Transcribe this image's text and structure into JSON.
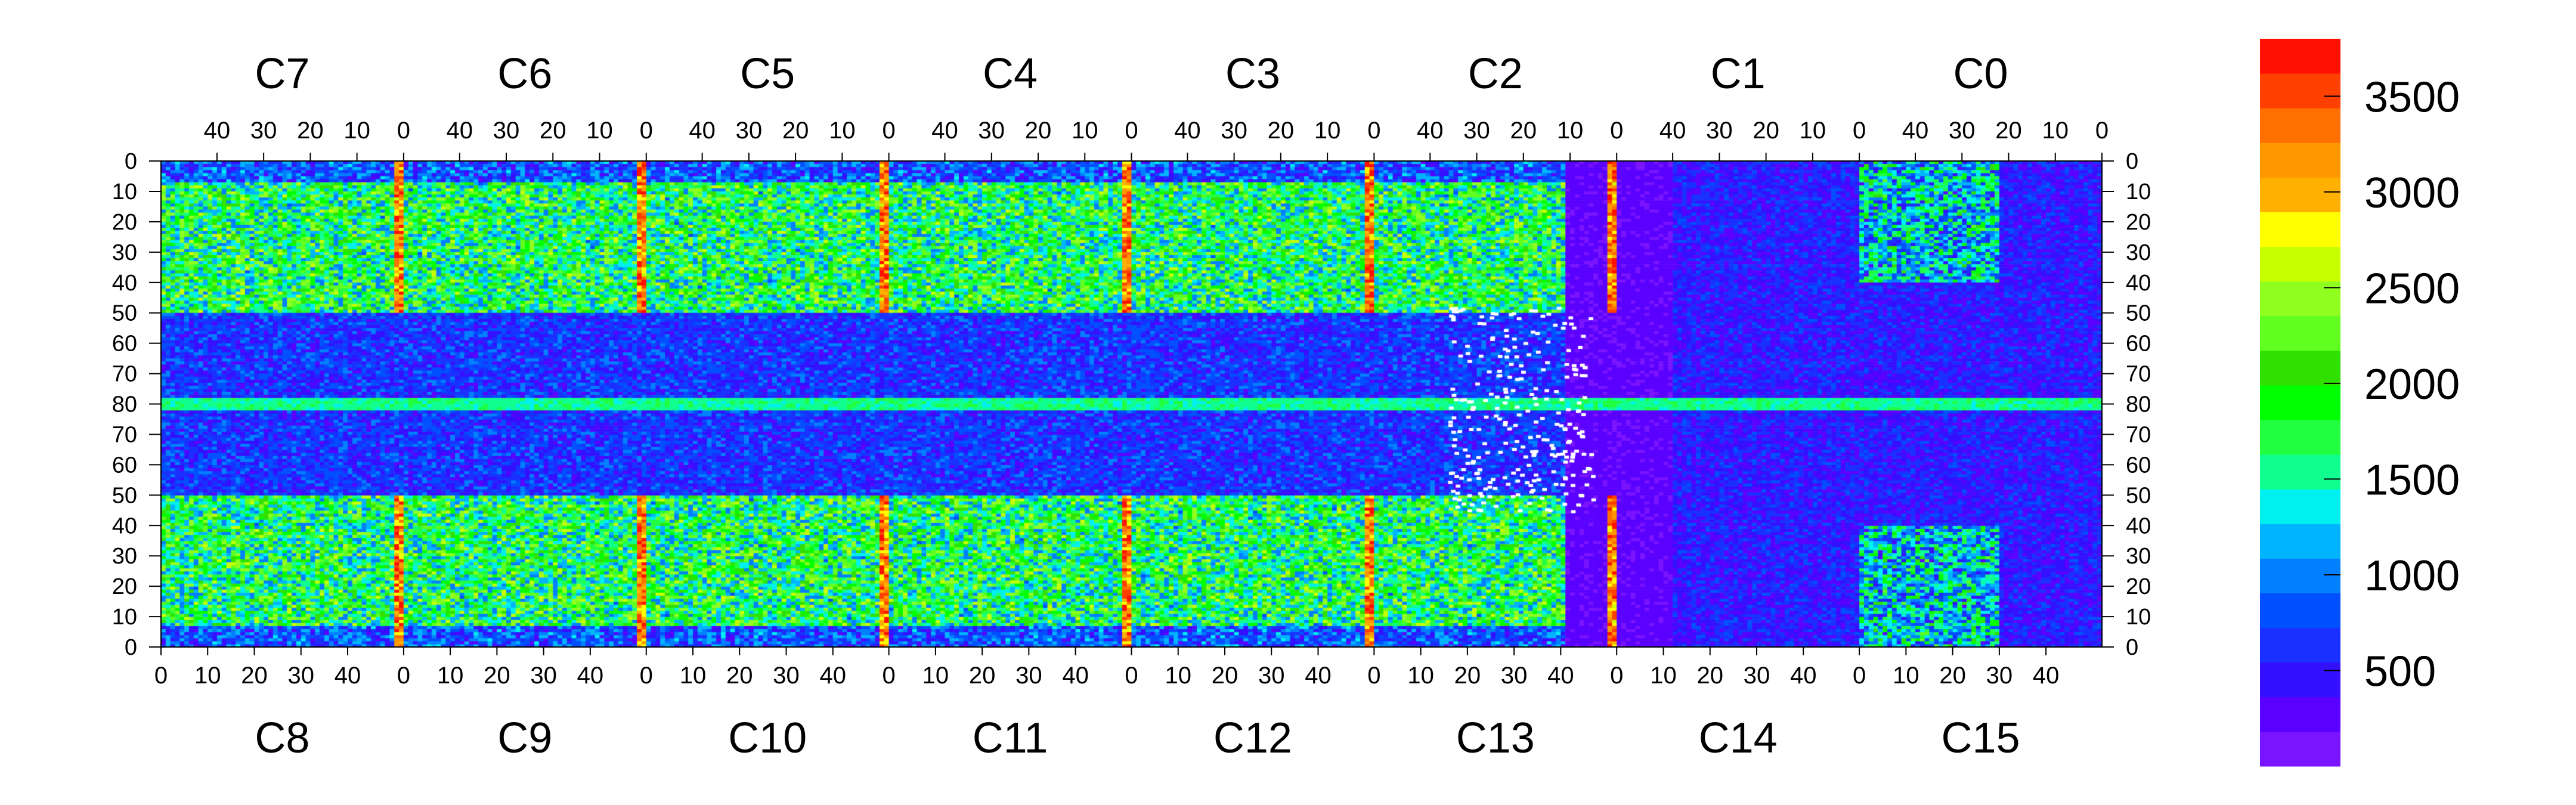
{
  "chart_data": {
    "type": "heatmap",
    "title": "",
    "xlabel": "",
    "ylabel": "",
    "top_chip_labels": [
      "C7",
      "C6",
      "C5",
      "C4",
      "C3",
      "C2",
      "C1",
      "C0"
    ],
    "bottom_chip_labels": [
      "C8",
      "C9",
      "C10",
      "C11",
      "C12",
      "C13",
      "C14",
      "C15"
    ],
    "top_column_ticks": [
      "40",
      "30",
      "20",
      "10",
      "0"
    ],
    "bottom_column_ticks": [
      "0",
      "10",
      "20",
      "30",
      "40"
    ],
    "row_ticks": [
      "0",
      "10",
      "20",
      "30",
      "40",
      "50",
      "60",
      "70",
      "80",
      "70",
      "60",
      "50",
      "40",
      "30",
      "20",
      "10",
      "0"
    ],
    "columns_per_chip": 52,
    "rows_per_half": 80,
    "color_scale": {
      "min": 0,
      "max": 3800,
      "ticks": [
        500,
        1000,
        1500,
        2000,
        2500,
        3000,
        3500
      ],
      "tick_labels": [
        "500",
        "1000",
        "1500",
        "2000",
        "2500",
        "3000",
        "3500"
      ],
      "palette": [
        "#7a14ff",
        "#5a00ff",
        "#3510ff",
        "#1a30ff",
        "#0050ff",
        "#0080ff",
        "#00b4ff",
        "#00f0f0",
        "#10ff90",
        "#20ff40",
        "#00ff00",
        "#30e000",
        "#60ff20",
        "#90ff20",
        "#c8ff00",
        "#ffff00",
        "#ffb000",
        "#ff9800",
        "#ff7000",
        "#ff4000",
        "#ff1000"
      ]
    },
    "regions": {
      "hot_columns": "column 0 of chips C7/C8 through C2/C13 and right edge of C1/C0",
      "dead_pixel_region": "C13/C14 boundary area, sparse hits",
      "central_band_row": 80
    }
  }
}
